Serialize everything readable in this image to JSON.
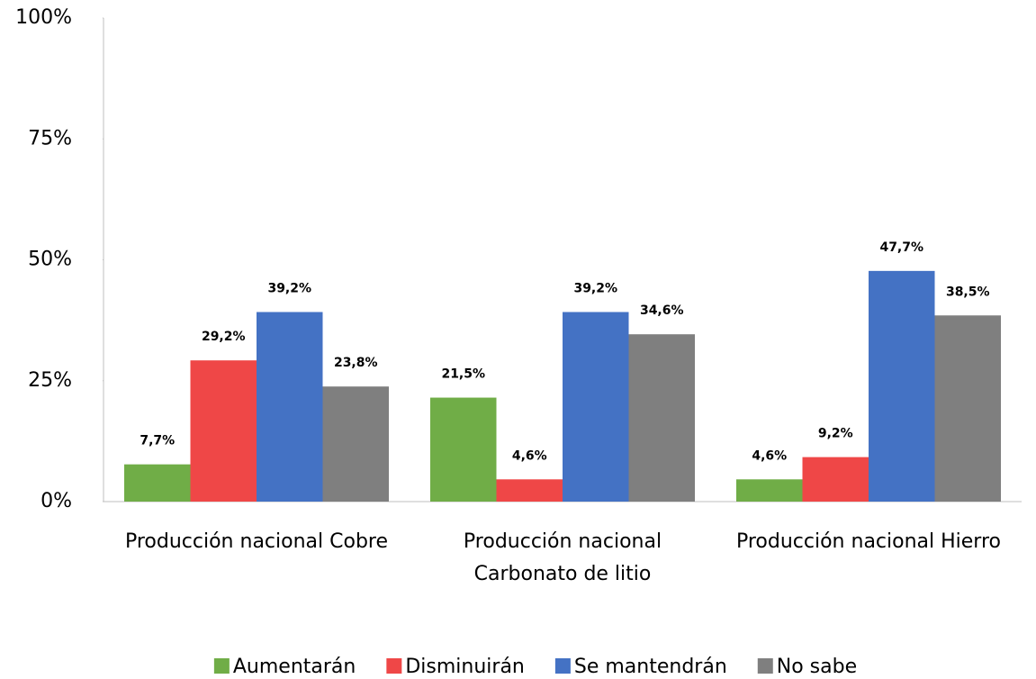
{
  "chart_data": {
    "type": "bar",
    "categories": [
      "Producción nacional Cobre",
      "Producción nacional Carbonato de litio",
      "Producción nacional Hierro"
    ],
    "series": [
      {
        "name": "Aumentarán",
        "color": "#70ad47",
        "values": [
          7.7,
          21.5,
          4.6
        ],
        "value_labels": [
          "7,7%",
          "21,5%",
          "4,6%"
        ]
      },
      {
        "name": "Disminuirán",
        "color": "#ef4747",
        "values": [
          29.2,
          4.6,
          9.2
        ],
        "value_labels": [
          "29,2%",
          "4,6%",
          "9,2%"
        ]
      },
      {
        "name": "Se mantendrán",
        "color": "#4472c4",
        "values": [
          39.2,
          39.2,
          47.7
        ],
        "value_labels": [
          "39,2%",
          "39,2%",
          "47,7%"
        ]
      },
      {
        "name": "No sabe",
        "color": "#7f7f7f",
        "values": [
          23.8,
          34.6,
          38.5
        ],
        "value_labels": [
          "23,8%",
          "34,6%",
          "38,5%"
        ]
      }
    ],
    "ylim": [
      0,
      100
    ],
    "yticks": [
      {
        "value": 0,
        "label": "0%"
      },
      {
        "value": 25,
        "label": "25%"
      },
      {
        "value": 50,
        "label": "50%"
      },
      {
        "value": 75,
        "label": "75%"
      },
      {
        "value": 100,
        "label": "100%"
      }
    ],
    "grid": false,
    "legend": "bottom"
  }
}
